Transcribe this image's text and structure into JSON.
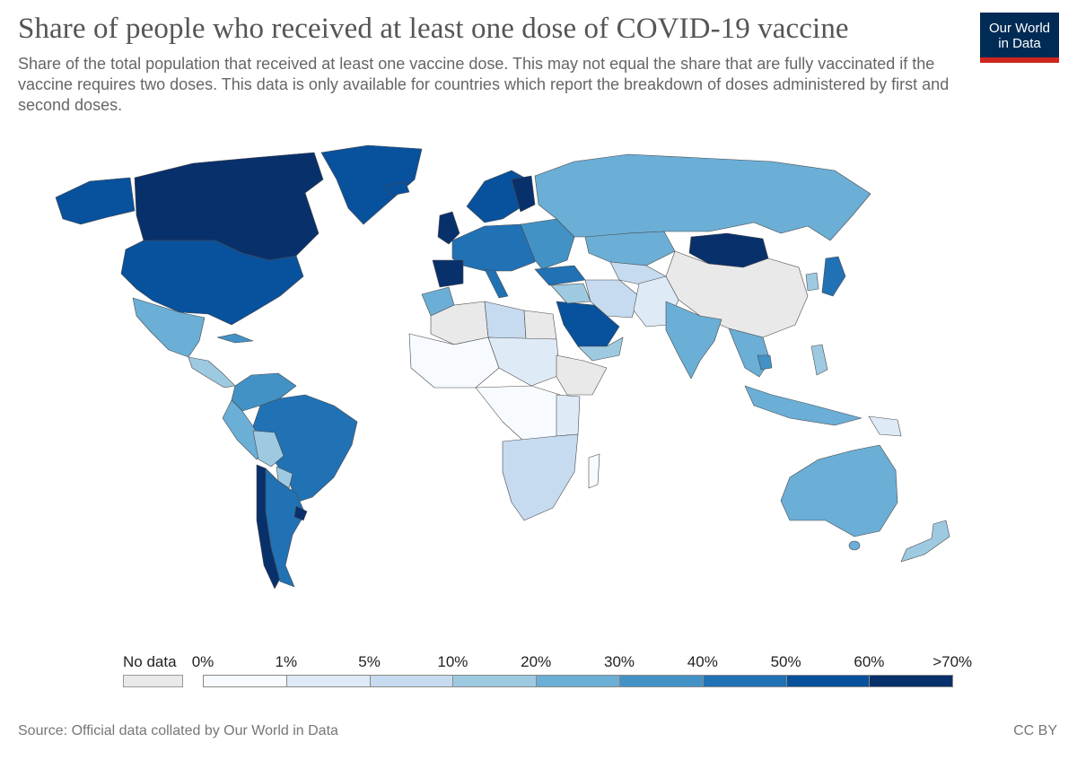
{
  "header": {
    "title": "Share of people who received at least one dose of COVID-19 vaccine",
    "subtitle": "Share of the total population that received at least one vaccine dose. This may not equal the share that are fully vaccinated if the vaccine requires two doses. This data is only available for countries which report the breakdown of doses administered by first and second doses."
  },
  "logo": {
    "line1": "Our World",
    "line2": "in Data",
    "colors": {
      "background": "#002b54",
      "accent": "#ce261e"
    }
  },
  "legend": {
    "no_data_label": "No data",
    "no_data_color": "#e9e9e9",
    "bins": [
      {
        "from": "0%",
        "to": "1%",
        "color": "#f7fbff"
      },
      {
        "from": "1%",
        "to": "5%",
        "color": "#deebf7"
      },
      {
        "from": "5%",
        "to": "10%",
        "color": "#c6dbef"
      },
      {
        "from": "10%",
        "to": "20%",
        "color": "#9ecae1"
      },
      {
        "from": "20%",
        "to": "30%",
        "color": "#6baed6"
      },
      {
        "from": "30%",
        "to": "40%",
        "color": "#4292c6"
      },
      {
        "from": "40%",
        "to": "50%",
        "color": "#2171b5"
      },
      {
        "from": "50%",
        "to": "60%",
        "color": "#08519c"
      },
      {
        "from": "60%",
        "to": ">70%",
        "color": "#08306b"
      }
    ],
    "tick_labels": [
      "0%",
      "1%",
      "5%",
      "10%",
      "20%",
      "30%",
      "40%",
      "50%",
      "60%",
      ">70%"
    ]
  },
  "footer": {
    "source": "Source: Official data collated by Our World in Data",
    "license": "CC BY"
  }
}
